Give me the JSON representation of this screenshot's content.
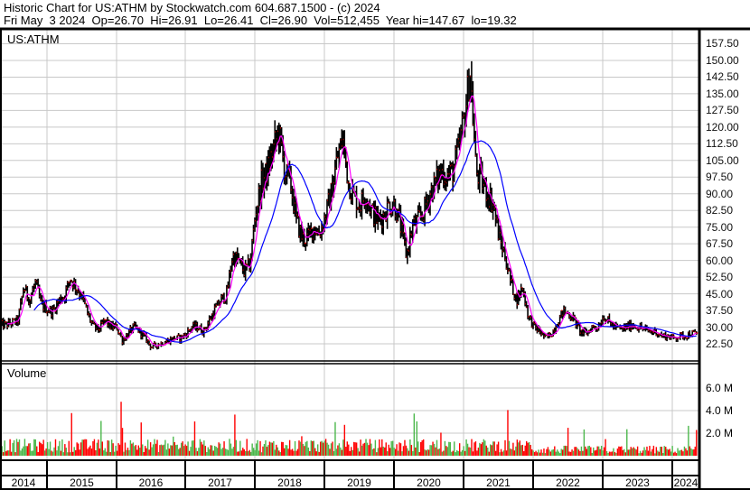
{
  "header": {
    "title": "Historic Chart for US:ATHM by Stockwatch.com 604.687.1500 - (c) 2024",
    "quote": "Fri May  3 2024  Op=26.70  Hi=26.91  Lo=26.41  Cl=26.90  Vol=512,455  Year hi=147.67  lo=19.32"
  },
  "chart_data": {
    "type": "line",
    "symbol": "US:ATHM",
    "volume_label": "Volume",
    "price_ticks": [
      "157.50",
      "150.00",
      "142.50",
      "135.00",
      "127.50",
      "120.00",
      "112.50",
      "105.00",
      "97.50",
      "90.00",
      "82.50",
      "75.00",
      "67.50",
      "60.00",
      "52.50",
      "45.00",
      "37.50",
      "30.00",
      "22.50"
    ],
    "price_range": [
      15,
      165
    ],
    "volume_ticks": [
      "6.0 M",
      "4.0 M",
      "2.0 M"
    ],
    "years": [
      "2014",
      "2015",
      "2016",
      "2017",
      "2018",
      "2019",
      "2020",
      "2021",
      "2022",
      "2023",
      "2024"
    ],
    "grid": true,
    "start_month": "2014-05",
    "monthly_close": [
      31,
      31,
      32,
      33,
      48,
      42,
      50,
      40,
      38,
      37,
      42,
      44,
      52,
      48,
      44,
      36,
      30,
      29,
      33,
      30,
      30,
      24,
      27,
      30,
      28,
      25,
      21,
      22,
      23,
      24,
      25,
      25,
      27,
      30,
      30,
      28,
      33,
      38,
      42,
      45,
      62,
      60,
      55,
      58,
      82,
      95,
      100,
      110,
      118,
      100,
      95,
      78,
      70,
      70,
      75,
      72,
      80,
      90,
      105,
      115,
      95,
      88,
      85,
      90,
      82,
      78,
      80,
      85,
      85,
      75,
      62,
      75,
      78,
      82,
      90,
      95,
      100,
      98,
      100,
      110,
      125,
      145,
      100,
      95,
      90,
      85,
      70,
      62,
      50,
      42,
      48,
      35,
      30,
      28,
      25,
      27,
      32,
      37,
      36,
      33,
      28,
      27,
      30,
      30,
      35,
      32,
      30,
      29,
      30,
      31,
      30,
      29,
      28,
      28,
      26,
      26,
      25,
      26,
      26,
      27,
      27
    ],
    "series": [
      {
        "style": "ohlc-bars",
        "color": "#000000",
        "close_tick_color": "#ff0000"
      },
      {
        "style": "moving-average-short",
        "color": "#ff00ff"
      },
      {
        "style": "moving-average-long",
        "color": "#0000ff"
      }
    ],
    "volume_colors": {
      "up": "#4cb84c",
      "down": "#ff0000"
    }
  }
}
